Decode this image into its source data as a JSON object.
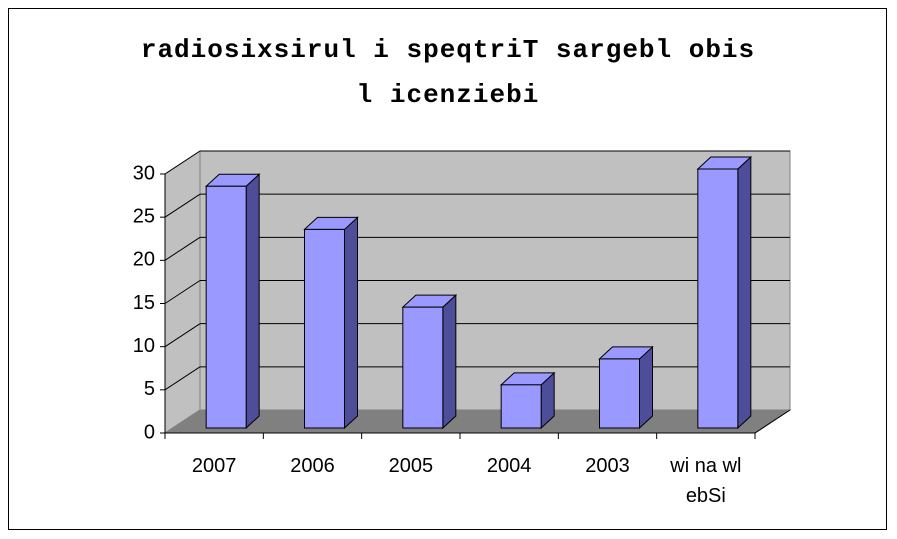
{
  "chart_data": {
    "type": "bar3d",
    "title": "radiosixsirul i speqtriT sargebl obis l icenziebi",
    "categories": [
      "2007",
      "2006",
      "2005",
      "2004",
      "2003",
      "wi na wl ebSi"
    ],
    "values": [
      28,
      23,
      14,
      5,
      8,
      30
    ],
    "color": "#9999ff",
    "ylim": [
      0,
      30
    ],
    "yticks": [
      0,
      5,
      10,
      15,
      20,
      25,
      30
    ],
    "grid": true
  }
}
